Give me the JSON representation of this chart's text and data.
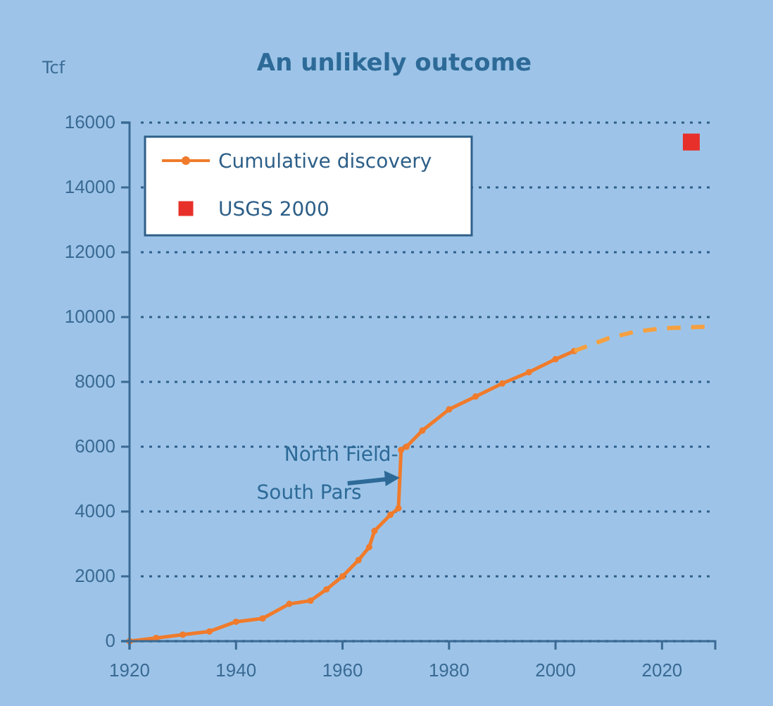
{
  "chart_data": {
    "type": "line",
    "title": "An unlikely outcome",
    "ylabel": "Tcf",
    "xlim": [
      1920,
      2030
    ],
    "xticks": [
      1920,
      1940,
      1960,
      1980,
      2000,
      2020
    ],
    "ylim": [
      0,
      16000
    ],
    "yticks": [
      0,
      2000,
      4000,
      6000,
      8000,
      10000,
      12000,
      14000,
      16000
    ],
    "grid": "y",
    "legend": "top left",
    "series": [
      {
        "name": "Cumulative discovery",
        "color": "#f07b2c",
        "marker": "circle",
        "line_style": "solid",
        "x": [
          1920,
          1925,
          1930,
          1935,
          1940,
          1945,
          1950,
          1954,
          1957,
          1960,
          1963,
          1965,
          1966,
          1969,
          1970.5,
          1971,
          1972,
          1975,
          1980,
          1985,
          1990,
          1995,
          2000,
          2003.5
        ],
        "values": [
          0,
          100,
          200,
          300,
          600,
          700,
          1150,
          1250,
          1600,
          2000,
          2500,
          2900,
          3400,
          3900,
          4100,
          5900,
          6000,
          6500,
          7150,
          7550,
          7950,
          8300,
          8700,
          8950
        ]
      },
      {
        "color": "#f5a040",
        "marker": "none",
        "line_style": "dashed",
        "x": [
          2003.5,
          2010,
          2015,
          2020,
          2028
        ],
        "values": [
          8950,
          9350,
          9550,
          9650,
          9700
        ]
      },
      {
        "name": "USGS 2000",
        "type": "scatter",
        "color": "#e8302a",
        "marker": "square",
        "x": [
          2025.5
        ],
        "values": [
          15400
        ]
      }
    ],
    "annotations": [
      {
        "text": "North Field-South Pars",
        "x": 1971,
        "y": 5000
      }
    ]
  }
}
